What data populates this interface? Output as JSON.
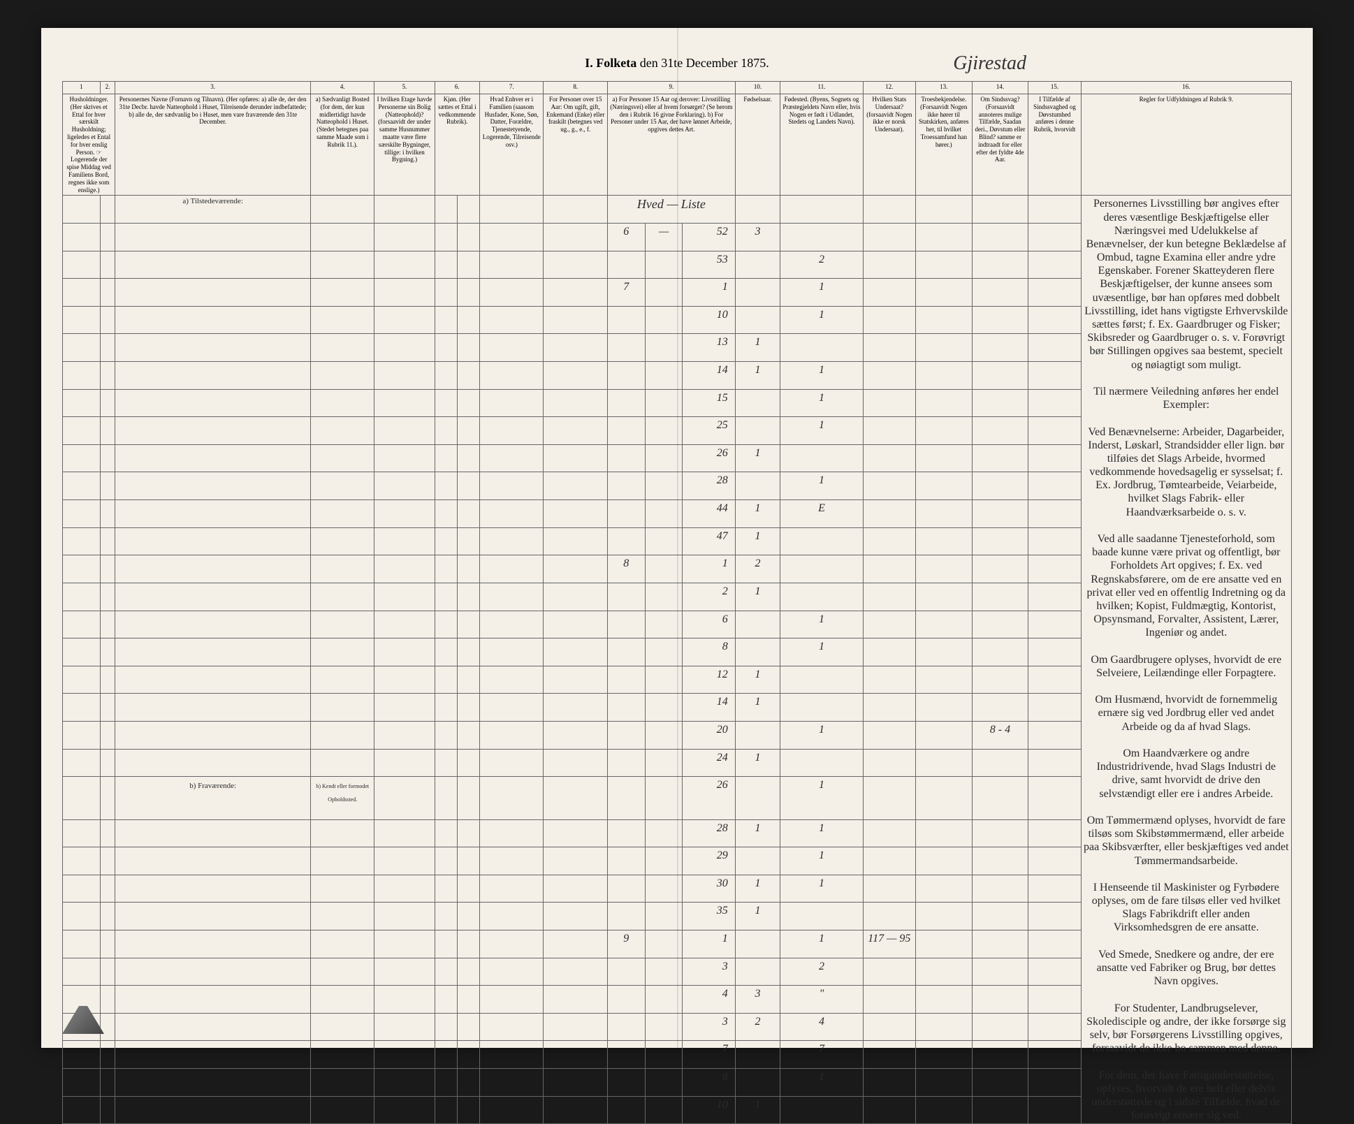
{
  "title": {
    "prefix": "I.  Folketa",
    "suffix": "den 31te December 1875.",
    "handwritten": "Gjirestad"
  },
  "columns": {
    "numbers": [
      "1",
      "2.",
      "3.",
      "4.",
      "5.",
      "6.",
      "7.",
      "8.",
      "9.",
      "10.",
      "11.",
      "12.",
      "13.",
      "14.",
      "15.",
      "16."
    ],
    "headers": [
      "Husholdninger. (Her skrives et Ettal for hver særskilt Husholdning; ligeledes et Ental for hver enslig Person. ☞ Logerende der spise Middag ved Familiens Bord, regnes ikke som enslige.)",
      "Personernes Navne (Fornavn og Tilnavn).\n(Her opføres:\na) alle de, der den 31te Decbr. havde Natteophold i Huset, Tilreisende derunder indbefattede;\nb) alle de, der sædvanlig bo i Huset, men vare fraværende den 31te December.",
      "a) Sædvanligt Bosted (for dem, der kun midlertidigt havde Natteophold i Huset. (Stedet betegnes paa samme Maade som i Rubrik 11.).",
      "I hvilken Etage havde Personerne sin Bolig (Natteophold)? (forsaavidt der under samme Husnummer maatte være flere særskilte Bygninger, tillige: i hvilken Bygning.)",
      "Kjøn. (Her sættes et Ettal i vedkommende Rubrik).",
      "Hvad Enhver er i Familien (saasom Husfader, Kone, Søn, Datter, Forældre, Tjenestetyende, Logerende, Tilreisende osv.)",
      "For Personer over 15 Aar: Om ugift, gift, Enkemand (Enke) eller fraskilt (betegnes ved ug., g., e., f.",
      "a) For Personer 15 Aar og derover: Livsstilling (Næringsvei) eller af hvem forsørget? (Se herom den i Rubrik 16 givne Forklaring).\nb) For Personer under 15 Aar, der have lønnet Arbeide, opgives dettes Art.",
      "Fødselsaar.",
      "Fødested. (Byens, Sognets og Præstegjeldets Navn eller, hvis Nogen er født i Udlandet, Stedets og Landets Navn).",
      "Hvilken Stats Undersaat? (forsaavidt Nogen ikke er norsk Undersaat).",
      "Troesbekjendelse. (Forsaavidt Nogen ikke hører til Statskirken, anføres her, til hvilket Troessamfund han hører.)",
      "Om Sindssvag? (Forsaavidt annoteres mulige Tilfælde, Saadan deri., Døvstum eller Blind? samme er indtraadt for eller efter det fyldte 4de Aar.",
      "I Tilfælde af Sindssvaghed og Døvstumhed anføres i denne Rubrik, hvorvidt",
      "Regler for Udfyldningen af Rubrik 9."
    ]
  },
  "sections": {
    "present": "a) Tilstedeværende:",
    "absent": "b) Fraværende:",
    "absent_note": "b) Kendt eller formodet Opholdssted."
  },
  "handwritten_header": "Hved — Liste",
  "rows": [
    {
      "c9a": "6",
      "c9b": "—",
      "c9c": "52",
      "c10": "3"
    },
    {
      "c9c": "53",
      "c11": "2"
    },
    {
      "c9a": "7",
      "c9c": "1",
      "c11": "1"
    },
    {
      "c9c": "10",
      "c11": "1"
    },
    {
      "c9c": "13",
      "c10": "1"
    },
    {
      "c9c": "14",
      "c10": "1",
      "c11": "1"
    },
    {
      "c9c": "15",
      "c11": "1"
    },
    {
      "c9c": "25",
      "c11": "1"
    },
    {
      "c9c": "26",
      "c10": "1"
    },
    {
      "c9c": "28",
      "c11": "1"
    },
    {
      "c9c": "44",
      "c10": "1",
      "c11": "E"
    },
    {
      "c9c": "47",
      "c10": "1"
    },
    {
      "c9a": "8",
      "c9c": "1",
      "c10": "2"
    },
    {
      "c9c": "2",
      "c10": "1"
    },
    {
      "c9c": "6",
      "c11": "1"
    },
    {
      "c9c": "8",
      "c11": "1"
    },
    {
      "c9c": "12",
      "c10": "1"
    },
    {
      "c9c": "14",
      "c10": "1"
    },
    {
      "c9c": "20",
      "c11": "1",
      "c14": "8 - 4"
    },
    {
      "c9c": "24",
      "c10": "1"
    },
    {
      "c9c": "26",
      "c11": "1"
    },
    {
      "c9c": "28",
      "c10": "1",
      "c11": "1"
    },
    {
      "c9c": "29",
      "c11": "1"
    },
    {
      "c9c": "30",
      "c10": "1",
      "c11": "1"
    },
    {
      "c9c": "35",
      "c10": "1"
    },
    {
      "c9a": "9",
      "c9c": "1",
      "c11": "1",
      "c12": "117 — 95"
    },
    {
      "c9c": "3",
      "c11": "2"
    },
    {
      "c9c": "4",
      "c10": "3",
      "c11": "\""
    },
    {
      "c9c": "3",
      "c10": "2",
      "c11": "4"
    },
    {
      "c9c": "7",
      "c11": "7"
    },
    {
      "c9c": "8",
      "c11": "1"
    },
    {
      "c9c": "10",
      "c10": "1"
    }
  ],
  "instructions_text": "Personernes Livsstilling bør angives efter deres væsentlige Beskjæftigelse eller Næringsvei med Udelukkelse af Benævnelser, der kun betegne Beklædelse af Ombud, tagne Examina eller andre ydre Egenskaber. Forener Skatteyderen flere Beskjæftigelser, der kunne ansees som uvæsentlige, bør han opføres med dobbelt Livsstilling, idet hans vigtigste Erhvervskilde sættes først; f. Ex. Gaardbruger og Fisker; Skibsreder og Gaardbruger o. s. v. Forøvrigt bør Stillingen opgives saa bestemt, specielt og nøiagtigt som muligt.\n\nTil nærmere Veiledning anføres her endel Exempler:\n\nVed Benævnelserne: Arbeider, Dagarbeider, Inderst, Løskarl, Strandsidder eller lign. bør tilføies det Slags Arbeide, hvormed vedkommende hovedsagelig er sysselsat; f. Ex. Jordbrug, Tømtearbeide, Veiarbeide, hvilket Slags Fabrik- eller Haandværksarbeide o. s. v.\n\nVed alle saadanne Tjenesteforhold, som baade kunne være privat og offentligt, bør Forholdets Art opgives; f. Ex. ved Regnskabsførere, om de ere ansatte ved en privat eller ved en offentlig Indretning og da hvilken; Kopist, Fuldmægtig, Kontorist, Opsynsmand, Forvalter, Assistent, Lærer, Ingeniør og andet.\n\nOm Gaardbrugere oplyses, hvorvidt de ere Selveiere, Leilændinge eller Forpagtere.\n\nOm Husmænd, hvorvidt de fornemmelig ernære sig ved Jordbrug eller ved andet Arbeide og da af hvad Slags.\n\nOm Haandværkere og andre Industridrivende, hvad Slags Industri de drive, samt hvorvidt de drive den selvstændigt eller ere i andres Arbeide.\n\nOm Tømmermænd oplyses, hvorvidt de fare tilsøs som Skibstømmermænd, eller arbeide paa Skibsværfter, eller beskjæftiges ved andet Tømmermandsarbeide.\n\nI Henseende til Maskinister og Fyrbødere oplyses, om de fare tilsøs eller ved hvilket Slags Fabrikdrift eller anden Virksomhedsgren de ere ansatte.\n\nVed Smede, Snedkere og andre, der ere ansatte ved Fabriker og Brug, bør dettes Navn opgives.\n\nFor Studenter, Landbrugselever, Skoledisciple og andre, der ikke forsørge sig selv, bør Forsørgerens Livsstilling opgives, forsaavidt de ikke bo sammen med denne.\n\nFor dem, der have Fattigunderstøttelse, oplyses, hvorvidt de ere helt eller delvis understøttede og i sidste Tilfælde, hvad de forøvrigt ernære sig ved.",
  "colors": {
    "page_bg": "#f4f0e8",
    "border": "#666666",
    "text": "#2a2a2a",
    "body_bg": "#1a1a1a"
  }
}
